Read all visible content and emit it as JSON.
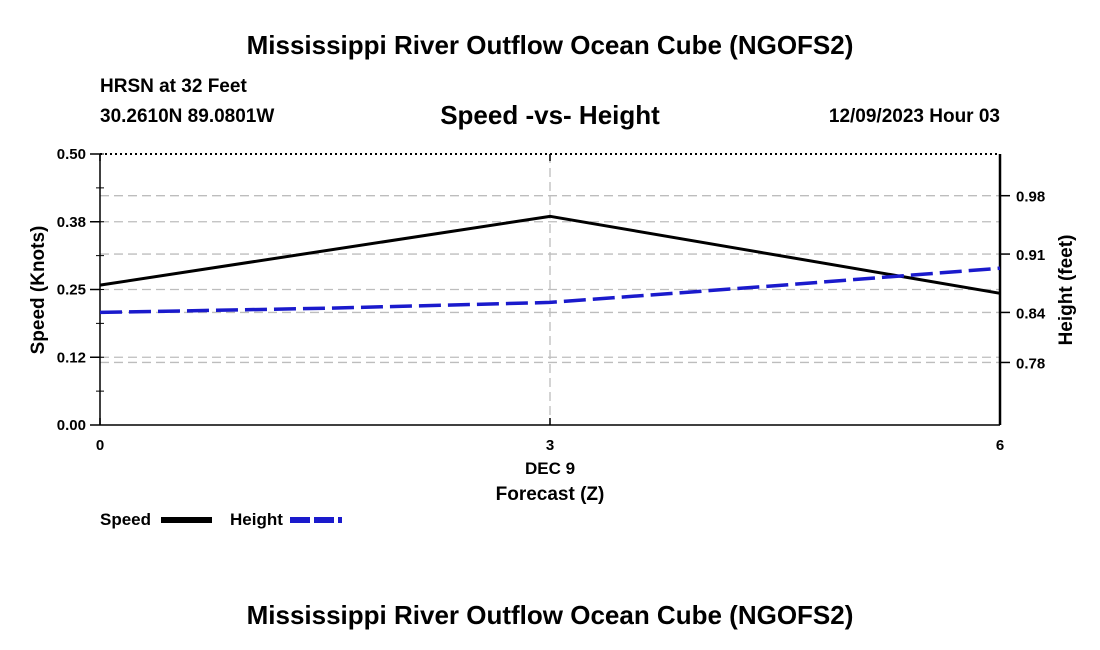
{
  "header": {
    "title_top": "Mississippi River Outflow Ocean Cube (NGOFS2)",
    "station": "HRSN at 32 Feet",
    "coords": "30.2610N  89.0801W",
    "plot_title": "Speed -vs- Height",
    "datetime": "12/09/2023 Hour 03",
    "title_bottom": "Mississippi River Outflow Ocean Cube (NGOFS2)"
  },
  "chart_data": {
    "type": "line",
    "title": "Speed -vs- Height",
    "xlabel": "Forecast (Z)",
    "x_date_label": "DEC 9",
    "xlim": [
      0,
      6
    ],
    "x_ticks": [
      0,
      3,
      6
    ],
    "x_tick_labels": [
      "0",
      "3",
      "6"
    ],
    "ylabel_left": "Speed (Knots)",
    "ylim_left": [
      0.0,
      0.5
    ],
    "y_ticks_left": [
      0.0,
      0.125,
      0.25,
      0.375,
      0.5
    ],
    "y_tick_labels_left": [
      "0.00",
      "0.12",
      "0.25",
      "0.38",
      "0.50"
    ],
    "ylabel_right": "Height (feet)",
    "ylim_right": [
      0.705,
      1.03
    ],
    "y_ticks_right": [
      0.78,
      0.84,
      0.91,
      0.98
    ],
    "y_tick_labels_right": [
      "0.78",
      "0.84",
      "0.91",
      "0.98"
    ],
    "grid": true,
    "legend_position": "bottom-left",
    "series": [
      {
        "name": "Speed",
        "axis": "left",
        "color": "#000000",
        "style": "solid",
        "x": [
          0,
          3,
          6
        ],
        "values": [
          0.258,
          0.385,
          0.243
        ]
      },
      {
        "name": "Height",
        "axis": "right",
        "color": "#1a1acc",
        "style": "dashed",
        "x": [
          0,
          1.5,
          3,
          4.5,
          6
        ],
        "values": [
          0.84,
          0.845,
          0.852,
          0.872,
          0.893
        ]
      }
    ]
  }
}
